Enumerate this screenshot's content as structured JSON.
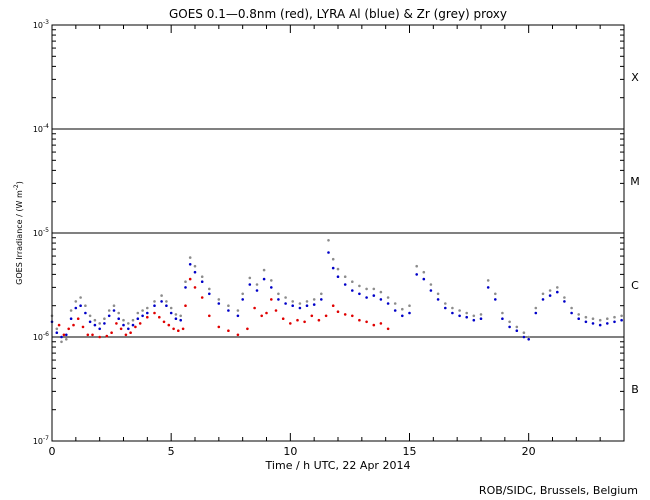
{
  "chart_data": {
    "type": "scatter",
    "title": "GOES 0.1—0.8nm (red), LYRA Al (blue) & Zr (grey) proxy",
    "xlabel": "Time / h UTC, 22 Apr 2014",
    "ylabel": "GOES Irradiance / (W m",
    "ylabel_sup": "-2",
    "ylabel_close": ")",
    "xlim": [
      0,
      24
    ],
    "ylim": [
      1e-07,
      0.001
    ],
    "yscale": "log",
    "x_ticks": [
      {
        "value": 0,
        "label": "0"
      },
      {
        "value": 5,
        "label": "5"
      },
      {
        "value": 10,
        "label": "10"
      },
      {
        "value": 15,
        "label": "15"
      },
      {
        "value": 20,
        "label": "20"
      }
    ],
    "y_ticks": [
      {
        "value": 1e-07,
        "base": "10",
        "exp": "-7"
      },
      {
        "value": 1e-06,
        "base": "10",
        "exp": "-6"
      },
      {
        "value": 1e-05,
        "base": "10",
        "exp": "-5"
      },
      {
        "value": 0.0001,
        "base": "10",
        "exp": "-4"
      },
      {
        "value": 0.001,
        "base": "10",
        "exp": "-3"
      }
    ],
    "flare_class_lines": [
      1e-06,
      1e-05,
      0.0001
    ],
    "flare_classes": [
      {
        "label": "B",
        "value": 3.16e-07
      },
      {
        "label": "C",
        "value": 3.16e-06
      },
      {
        "label": "M",
        "value": 3.16e-05
      },
      {
        "label": "X",
        "value": 0.000316
      }
    ],
    "credit": "ROB/SIDC, Brussels, Belgium",
    "colors": {
      "goes": "#e00000",
      "lyra_al": "#0000c8",
      "lyra_zr": "#8c8c8c"
    },
    "series": [
      {
        "name": "GOES 0.1—0.8nm",
        "color": "#e00000",
        "x": [
          0.3,
          0.5,
          0.7,
          0.9,
          1.1,
          1.3,
          1.5,
          1.7,
          2.0,
          2.3,
          2.5,
          2.7,
          2.9,
          3.1,
          3.3,
          3.5,
          3.7,
          4.0,
          4.3,
          4.5,
          4.7,
          4.9,
          5.1,
          5.3,
          5.5,
          5.6,
          5.8,
          6.0,
          6.3,
          6.6,
          7.0,
          7.4,
          7.8,
          8.2,
          8.5,
          8.8,
          9.0,
          9.2,
          9.4,
          9.7,
          10.0,
          10.3,
          10.6,
          10.9,
          11.2,
          11.5,
          11.8,
          12.0,
          12.3,
          12.6,
          12.9,
          13.2,
          13.5,
          13.8,
          14.1
        ],
        "y": [
          1.3e-06,
          1.05e-06,
          1.2e-06,
          1.3e-06,
          1.5e-06,
          1.25e-06,
          1.05e-06,
          1.05e-06,
          1e-06,
          1.02e-06,
          1.1e-06,
          1.35e-06,
          1.2e-06,
          1.05e-06,
          1.1e-06,
          1.25e-06,
          1.35e-06,
          1.55e-06,
          1.7e-06,
          1.55e-06,
          1.4e-06,
          1.3e-06,
          1.2e-06,
          1.15e-06,
          1.2e-06,
          2e-06,
          3.6e-06,
          3e-06,
          2.4e-06,
          1.6e-06,
          1.25e-06,
          1.15e-06,
          1.05e-06,
          1.2e-06,
          1.9e-06,
          1.6e-06,
          1.7e-06,
          2.3e-06,
          1.8e-06,
          1.5e-06,
          1.35e-06,
          1.45e-06,
          1.4e-06,
          1.6e-06,
          1.45e-06,
          1.6e-06,
          2e-06,
          1.75e-06,
          1.65e-06,
          1.6e-06,
          1.45e-06,
          1.4e-06,
          1.3e-06,
          1.35e-06,
          1.2e-06
        ]
      },
      {
        "name": "LYRA Al",
        "color": "#0000c8",
        "x": [
          0.0,
          0.2,
          0.4,
          0.6,
          0.8,
          1.0,
          1.2,
          1.4,
          1.6,
          1.8,
          2.0,
          2.2,
          2.4,
          2.6,
          2.8,
          3.0,
          3.2,
          3.4,
          3.6,
          3.8,
          4.0,
          4.3,
          4.6,
          4.8,
          5.0,
          5.2,
          5.4,
          5.6,
          5.8,
          6.0,
          6.3,
          6.6,
          7.0,
          7.4,
          7.8,
          8.0,
          8.3,
          8.6,
          8.9,
          9.2,
          9.5,
          9.8,
          10.1,
          10.4,
          10.7,
          11.0,
          11.3,
          11.6,
          11.8,
          12.0,
          12.3,
          12.6,
          12.9,
          13.2,
          13.5,
          13.8,
          14.1,
          14.4,
          14.7,
          15.0,
          15.3,
          15.6,
          15.9,
          16.2,
          16.5,
          16.8,
          17.1,
          17.4,
          17.7,
          18.0,
          18.3,
          18.6,
          18.9,
          19.2,
          19.5,
          19.8,
          20.0,
          20.3,
          20.6,
          20.9,
          21.2,
          21.5,
          21.8,
          22.1,
          22.4,
          22.7,
          23.0,
          23.3,
          23.6,
          23.9
        ],
        "y": [
          1.4e-06,
          1.1e-06,
          1e-06,
          1.05e-06,
          1.5e-06,
          1.9e-06,
          2e-06,
          1.7e-06,
          1.4e-06,
          1.3e-06,
          1.2e-06,
          1.35e-06,
          1.6e-06,
          1.8e-06,
          1.5e-06,
          1.3e-06,
          1.2e-06,
          1.3e-06,
          1.5e-06,
          1.6e-06,
          1.7e-06,
          2e-06,
          2.2e-06,
          2e-06,
          1.7e-06,
          1.5e-06,
          1.45e-06,
          3e-06,
          5e-06,
          4.2e-06,
          3.4e-06,
          2.6e-06,
          2.1e-06,
          1.8e-06,
          1.6e-06,
          2.3e-06,
          3.2e-06,
          2.8e-06,
          3.6e-06,
          3e-06,
          2.3e-06,
          2.1e-06,
          2e-06,
          1.9e-06,
          2e-06,
          2.05e-06,
          2.3e-06,
          6.5e-06,
          4.6e-06,
          3.8e-06,
          3.2e-06,
          2.8e-06,
          2.6e-06,
          2.4e-06,
          2.5e-06,
          2.3e-06,
          2.1e-06,
          1.8e-06,
          1.6e-06,
          1.7e-06,
          4e-06,
          3.6e-06,
          2.8e-06,
          2.3e-06,
          1.9e-06,
          1.7e-06,
          1.6e-06,
          1.55e-06,
          1.45e-06,
          1.5e-06,
          3e-06,
          2.3e-06,
          1.5e-06,
          1.25e-06,
          1.15e-06,
          1e-06,
          9.5e-07,
          1.7e-06,
          2.3e-06,
          2.5e-06,
          2.7e-06,
          2.2e-06,
          1.7e-06,
          1.5e-06,
          1.4e-06,
          1.35e-06,
          1.3e-06,
          1.35e-06,
          1.4e-06,
          1.45e-06
        ]
      },
      {
        "name": "LYRA Zr",
        "color": "#8c8c8c",
        "x": [
          0.0,
          0.2,
          0.4,
          0.6,
          0.8,
          1.0,
          1.2,
          1.4,
          1.6,
          1.8,
          2.0,
          2.2,
          2.4,
          2.6,
          2.8,
          3.0,
          3.2,
          3.4,
          3.6,
          3.8,
          4.0,
          4.3,
          4.6,
          4.8,
          5.0,
          5.2,
          5.4,
          5.6,
          5.8,
          6.0,
          6.3,
          6.6,
          7.0,
          7.4,
          7.8,
          8.0,
          8.3,
          8.6,
          8.9,
          9.2,
          9.5,
          9.8,
          10.1,
          10.4,
          10.7,
          11.0,
          11.3,
          11.6,
          11.8,
          12.0,
          12.3,
          12.6,
          12.9,
          13.2,
          13.5,
          13.8,
          14.1,
          14.4,
          14.7,
          15.0,
          15.3,
          15.6,
          15.9,
          16.2,
          16.5,
          16.8,
          17.1,
          17.4,
          17.7,
          18.0,
          18.3,
          18.6,
          18.9,
          19.2,
          19.5,
          19.8,
          20.0,
          20.3,
          20.6,
          20.9,
          21.2,
          21.5,
          21.8,
          22.1,
          22.4,
          22.7,
          23.0,
          23.3,
          23.6,
          23.9
        ],
        "y": [
          1.6e-06,
          1.2e-06,
          9e-07,
          9.5e-07,
          1.8e-06,
          2.2e-06,
          2.4e-06,
          2e-06,
          1.6e-06,
          1.45e-06,
          1.35e-06,
          1.5e-06,
          1.8e-06,
          2e-06,
          1.7e-06,
          1.45e-06,
          1.35e-06,
          1.45e-06,
          1.7e-06,
          1.8e-06,
          1.9e-06,
          2.2e-06,
          2.5e-06,
          2.2e-06,
          1.9e-06,
          1.65e-06,
          1.6e-06,
          3.4e-06,
          5.8e-06,
          4.8e-06,
          3.8e-06,
          2.9e-06,
          2.3e-06,
          2e-06,
          1.8e-06,
          2.6e-06,
          3.7e-06,
          3.2e-06,
          4.4e-06,
          3.5e-06,
          2.6e-06,
          2.4e-06,
          2.2e-06,
          2.1e-06,
          2.2e-06,
          2.3e-06,
          2.6e-06,
          8.5e-06,
          5.6e-06,
          4.5e-06,
          3.8e-06,
          3.4e-06,
          3.1e-06,
          2.9e-06,
          2.9e-06,
          2.7e-06,
          2.4e-06,
          2.1e-06,
          1.85e-06,
          2e-06,
          4.8e-06,
          4.2e-06,
          3.2e-06,
          2.6e-06,
          2.1e-06,
          1.9e-06,
          1.8e-06,
          1.7e-06,
          1.6e-06,
          1.65e-06,
          3.5e-06,
          2.6e-06,
          1.7e-06,
          1.4e-06,
          1.25e-06,
          1.1e-06,
          1e-06,
          1.9e-06,
          2.6e-06,
          2.8e-06,
          3e-06,
          2.4e-06,
          1.9e-06,
          1.65e-06,
          1.55e-06,
          1.5e-06,
          1.45e-06,
          1.5e-06,
          1.55e-06,
          1.6e-06
        ]
      }
    ]
  }
}
